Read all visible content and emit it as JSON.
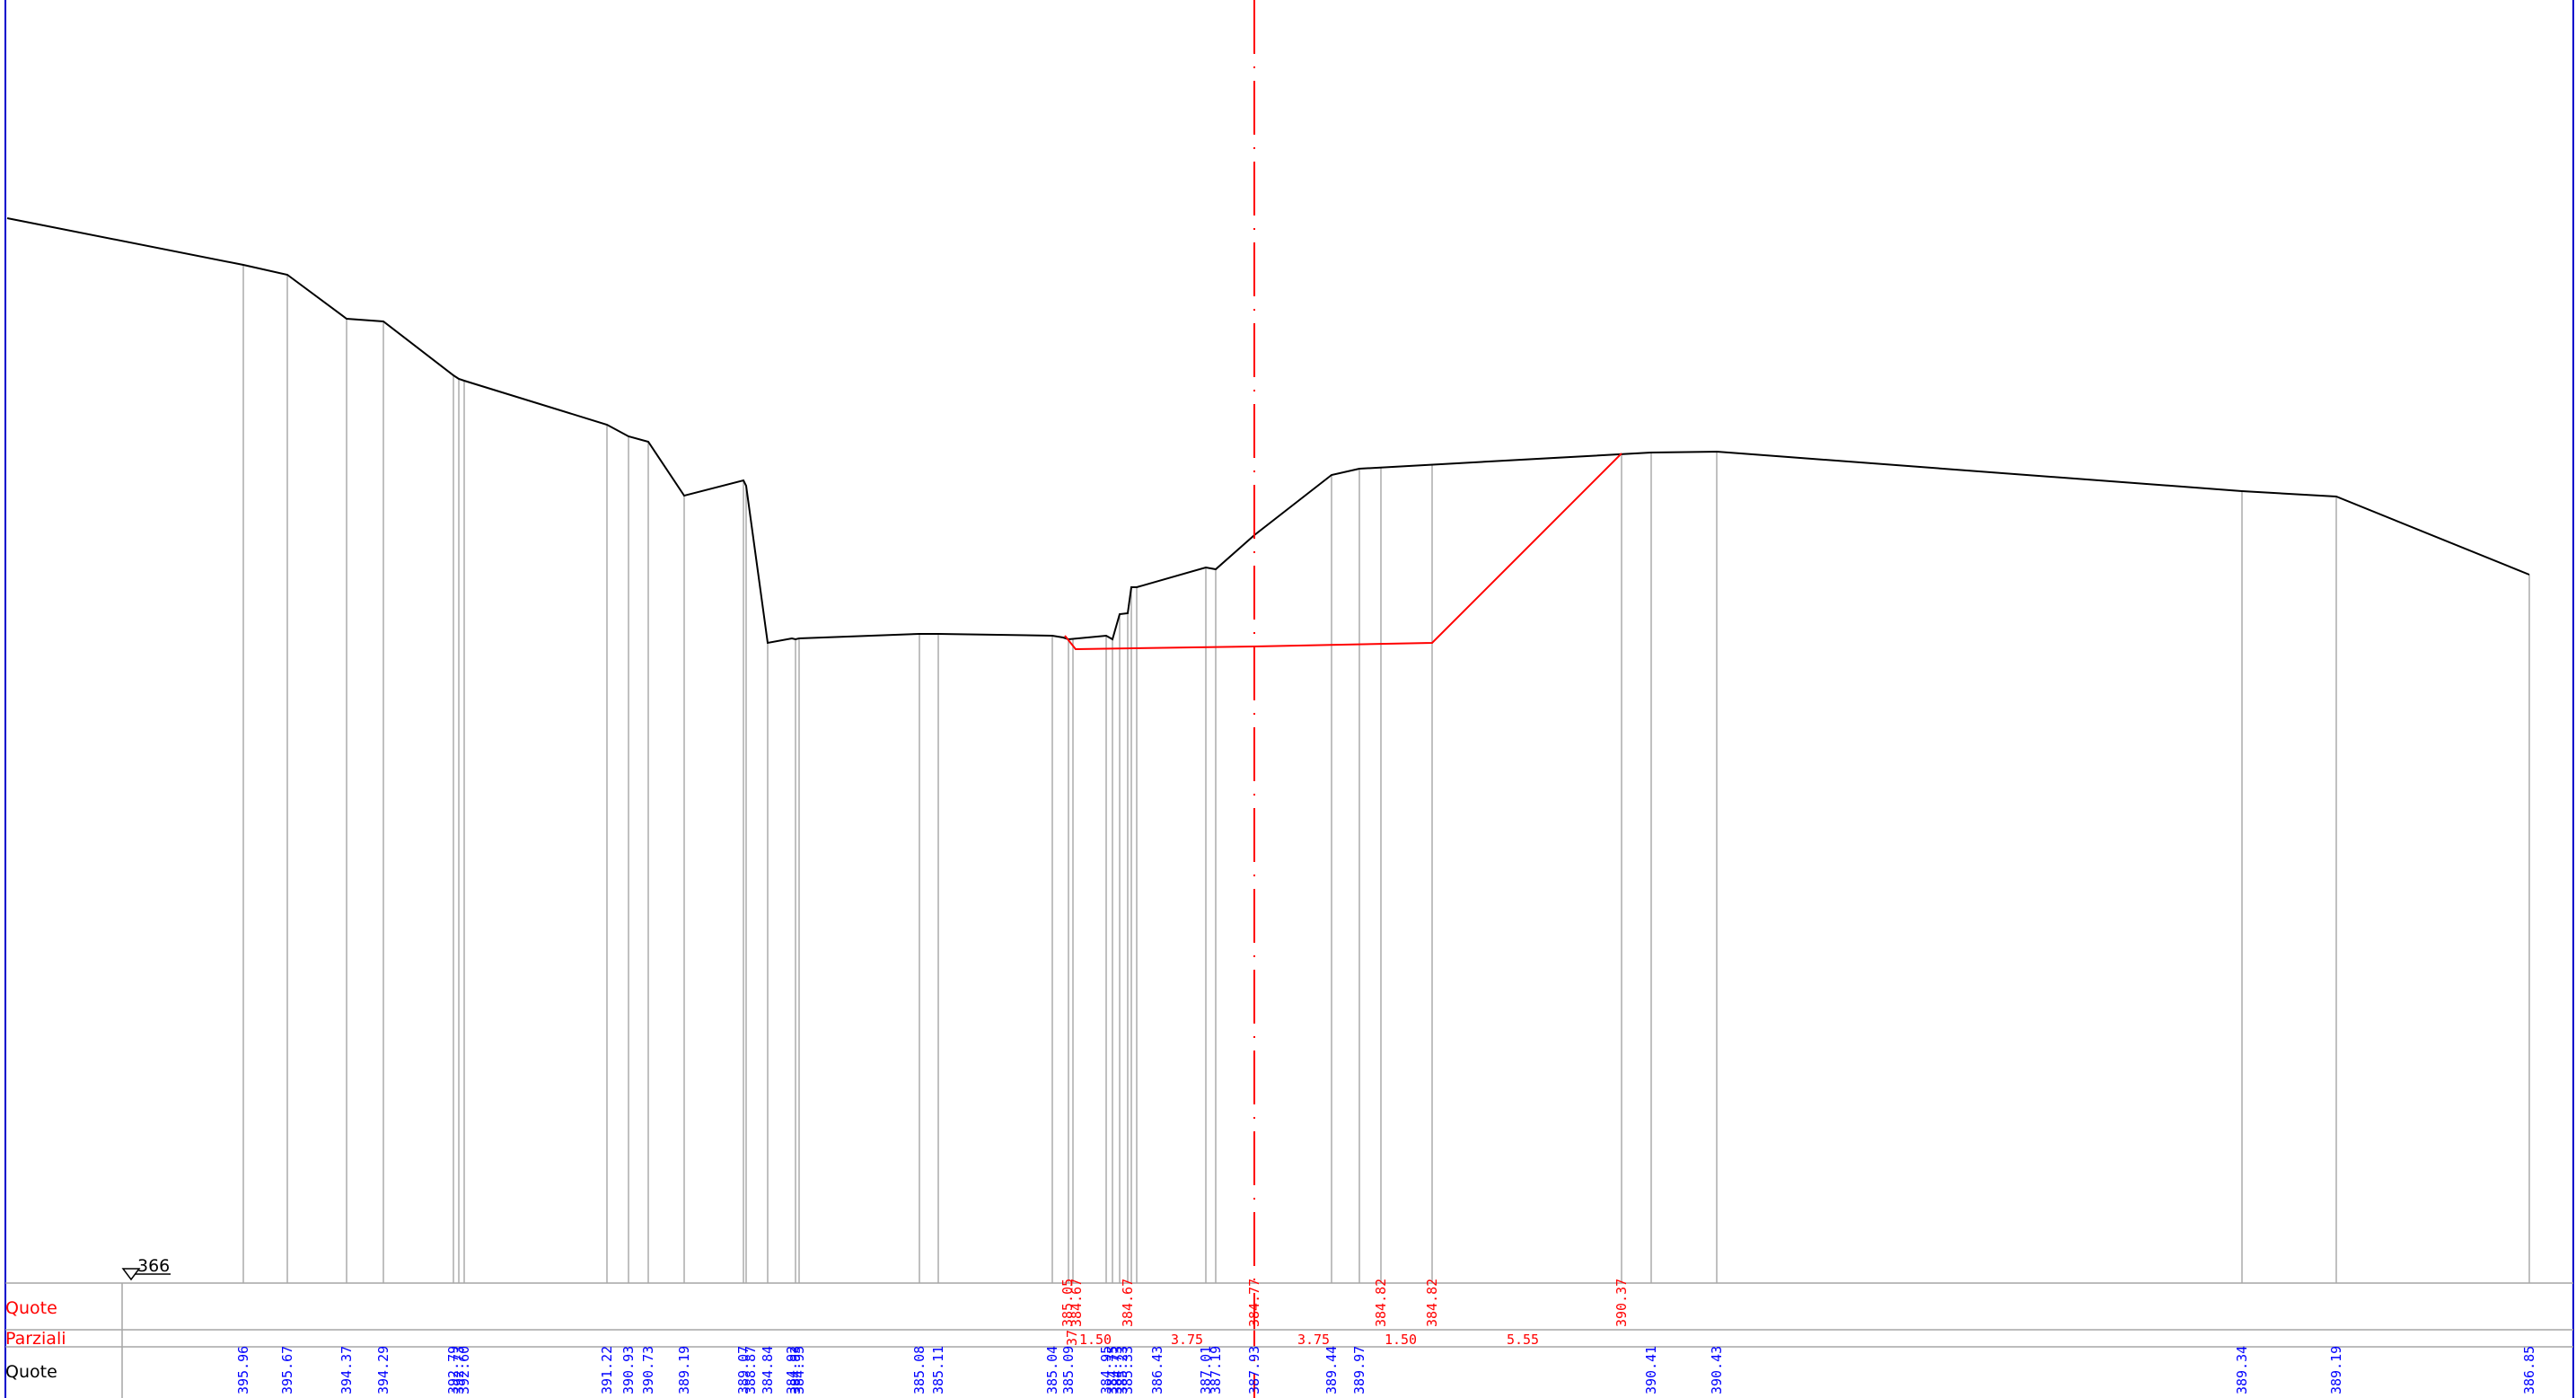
{
  "colors": {
    "background": "#ffffff",
    "frame": "#0000cc",
    "terrain": "#000000",
    "project": "#ff0000",
    "grid": "#a6a6a6",
    "axis": "#ff0000",
    "blue_text": "#0000ff",
    "red_text": "#ff0000",
    "black_text": "#000000"
  },
  "datum": {
    "label": "366"
  },
  "rows": [
    {
      "key": "quote_project",
      "label": "Quote",
      "color": "red"
    },
    {
      "key": "parziali",
      "label": "Parziali",
      "color": "red"
    },
    {
      "key": "quote_terrain",
      "label": "Quote",
      "color": "black"
    }
  ],
  "terrain_elevations": [
    "395.96",
    "395.67",
    "394.37",
    "394.29",
    "392.79",
    "392.73",
    "392.60",
    "391.22",
    "390.93",
    "390.73",
    "389.19",
    "389.07",
    "388.87",
    "384.84",
    "384.92",
    "384.93",
    "384.95",
    "385.08",
    "385.11",
    "385.04",
    "385.09",
    "384.95",
    "384.75",
    "384.73",
    "385.23",
    "385.33",
    "386.43",
    "387.01",
    "387.19",
    "387.93",
    "389.44",
    "389.97",
    "390.41",
    "390.43",
    "389.34",
    "389.19",
    "386.85"
  ],
  "project_elevations": [
    "385.05",
    "384.67",
    "384.67",
    "384.77",
    "384.82",
    "384.82",
    "390.37"
  ],
  "partial_distances": [
    "1.50",
    "3.75",
    "3.75",
    "1.50",
    "5.55"
  ],
  "partial_fragment": "37",
  "chart_data": {
    "type": "line",
    "title": "",
    "reference_level": 366,
    "series": [
      {
        "values": [
          395.96,
          395.67,
          394.37,
          394.29,
          392.79,
          392.73,
          392.6,
          391.22,
          390.93,
          390.73,
          389.19,
          389.07,
          388.87,
          384.84,
          384.92,
          384.93,
          384.95,
          385.08,
          385.11,
          385.04,
          385.09,
          384.95,
          384.75,
          384.73,
          385.23,
          385.33,
          386.43,
          387.01,
          387.19,
          387.93,
          389.44,
          389.97,
          390.41,
          390.43,
          389.34,
          389.19,
          386.85
        ]
      },
      {
        "values": [
          385.05,
          384.67,
          384.67,
          384.77,
          384.82,
          384.82,
          390.37
        ]
      }
    ],
    "partial_distances": [
      1.5,
      3.75,
      3.75,
      1.5,
      5.55
    ],
    "grid": false
  }
}
